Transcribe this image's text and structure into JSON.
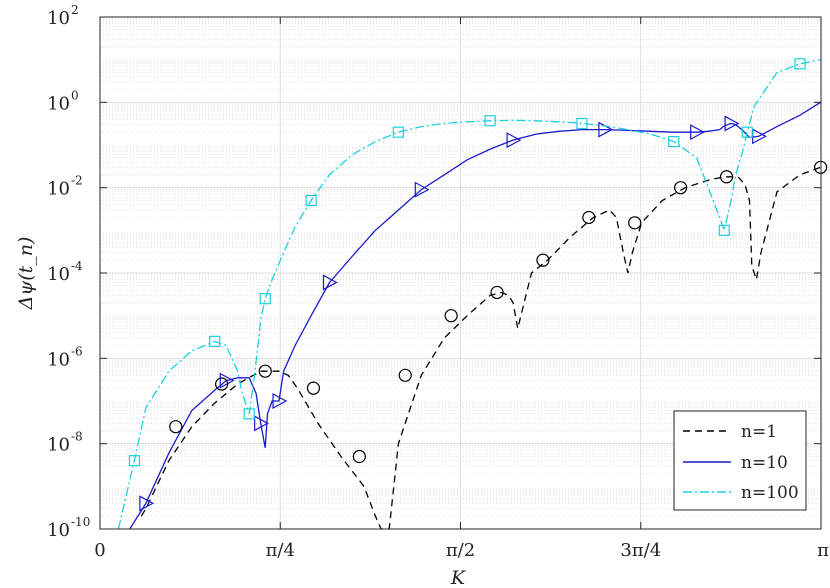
{
  "chart_data": {
    "type": "line",
    "xlabel": "K",
    "ylabel": "Δψ(t_n)",
    "xlim": [
      0,
      3.14159
    ],
    "ylim": [
      1e-10,
      100
    ],
    "yscale": "log",
    "grid": true,
    "legend_position": "bottom-right",
    "x_ticks": [
      {
        "value": 0,
        "label": "0"
      },
      {
        "value": 0.7854,
        "label": "π/4"
      },
      {
        "value": 1.5708,
        "label": "π/2"
      },
      {
        "value": 2.3562,
        "label": "3π/4"
      },
      {
        "value": 3.14159,
        "label": "π"
      }
    ],
    "y_ticks": [
      {
        "value": -10,
        "base": "10",
        "exp": "-10"
      },
      {
        "value": -8,
        "base": "10",
        "exp": "-8"
      },
      {
        "value": -6,
        "base": "10",
        "exp": "-6"
      },
      {
        "value": -4,
        "base": "10",
        "exp": "-4"
      },
      {
        "value": -2,
        "base": "10",
        "exp": "-2"
      },
      {
        "value": 0,
        "base": "10",
        "exp": "0"
      },
      {
        "value": 2,
        "base": "10",
        "exp": "2"
      }
    ],
    "series": [
      {
        "name": "n=1",
        "color": "#000000",
        "style": "dashed",
        "x": [
          0.18,
          0.2,
          0.3,
          0.4,
          0.5,
          0.6,
          0.7,
          0.78,
          0.82,
          0.86,
          0.95,
          1.05,
          1.15,
          1.2,
          1.225,
          1.24,
          1.26,
          1.3,
          1.4,
          1.5,
          1.6,
          1.7,
          1.75,
          1.78,
          1.8,
          1.82,
          1.88,
          1.95,
          2.05,
          2.15,
          2.22,
          2.25,
          2.28,
          2.3,
          2.32,
          2.36,
          2.45,
          2.55,
          2.65,
          2.72,
          2.78,
          2.81,
          2.83,
          2.84,
          2.86,
          2.88,
          2.95,
          3.05,
          3.14
        ],
        "y": [
          2e-10,
          3e-10,
          4e-09,
          2.5e-08,
          9e-08,
          2.5e-07,
          5e-07,
          5e-07,
          4e-07,
          2e-07,
          3e-08,
          5e-09,
          1e-09,
          2e-10,
          3e-11,
          1e-11,
          1e-10,
          1e-08,
          4e-07,
          3e-06,
          1e-05,
          3e-05,
          3.5e-05,
          3e-05,
          2e-05,
          5e-06,
          0.0001,
          0.0002,
          0.0007,
          0.002,
          0.003,
          0.002,
          0.0003,
          0.0001,
          0.0003,
          0.0015,
          0.005,
          0.01,
          0.015,
          0.018,
          0.018,
          0.012,
          0.005,
          0.00015,
          7e-05,
          0.0003,
          0.008,
          0.02,
          0.03
        ],
        "markers": "none"
      },
      {
        "name": "n=10",
        "color": "#1a1acd",
        "style": "solid",
        "x": [
          0.13,
          0.2,
          0.3,
          0.4,
          0.5,
          0.55,
          0.6,
          0.65,
          0.68,
          0.7,
          0.72,
          0.73,
          0.75,
          0.78,
          0.8,
          0.85,
          0.92,
          1.0,
          1.1,
          1.2,
          1.3,
          1.4,
          1.5,
          1.6,
          1.7,
          1.8,
          1.9,
          2.0,
          2.1,
          2.2,
          2.3,
          2.4,
          2.5,
          2.6,
          2.65,
          2.7,
          2.72,
          2.75,
          2.77,
          2.8,
          2.83,
          2.87,
          2.95,
          3.05,
          3.14
        ],
        "y": [
          1e-10,
          4e-10,
          6e-09,
          6e-08,
          1.8e-07,
          3e-07,
          3.5e-07,
          3.5e-07,
          1.5e-07,
          3e-08,
          8e-09,
          5e-08,
          1e-07,
          1e-07,
          5e-07,
          2e-06,
          1e-05,
          6e-05,
          0.00025,
          0.001,
          0.003,
          0.009,
          0.02,
          0.045,
          0.08,
          0.13,
          0.18,
          0.21,
          0.23,
          0.23,
          0.22,
          0.21,
          0.2,
          0.2,
          0.21,
          0.23,
          0.28,
          0.32,
          0.3,
          0.22,
          0.15,
          0.16,
          0.27,
          0.5,
          1.0
        ],
        "markers": "triangle-right"
      },
      {
        "name": "n=100",
        "color": "#1ad1e0",
        "style": "dashdot",
        "x": [
          0.08,
          0.15,
          0.2,
          0.3,
          0.4,
          0.5,
          0.55,
          0.6,
          0.62,
          0.65,
          0.67,
          0.69,
          0.7,
          0.72,
          0.75,
          0.8,
          0.85,
          0.92,
          1.0,
          1.1,
          1.2,
          1.3,
          1.4,
          1.5,
          1.6,
          1.7,
          1.8,
          1.9,
          2.0,
          2.1,
          2.2,
          2.3,
          2.4,
          2.5,
          2.6,
          2.65,
          2.7,
          2.72,
          2.75,
          2.77,
          2.8,
          2.82,
          2.85,
          2.9,
          2.95,
          3.05,
          3.14
        ],
        "y": [
          1e-10,
          4e-09,
          7e-08,
          5e-07,
          1.5e-06,
          2.5e-06,
          2e-06,
          5e-07,
          1.5e-07,
          5e-08,
          3e-07,
          2.5e-06,
          8e-06,
          2.5e-05,
          7e-05,
          0.0003,
          0.0012,
          0.005,
          0.02,
          0.06,
          0.12,
          0.2,
          0.27,
          0.32,
          0.35,
          0.37,
          0.38,
          0.37,
          0.35,
          0.32,
          0.28,
          0.23,
          0.18,
          0.12,
          0.05,
          0.01,
          0.002,
          0.001,
          0.005,
          0.02,
          0.07,
          0.2,
          0.8,
          2,
          5,
          8,
          10
        ],
        "markers": "square"
      }
    ],
    "legend": [
      {
        "label": "n=1"
      },
      {
        "label": "n=10"
      },
      {
        "label": "n=100"
      }
    ]
  }
}
